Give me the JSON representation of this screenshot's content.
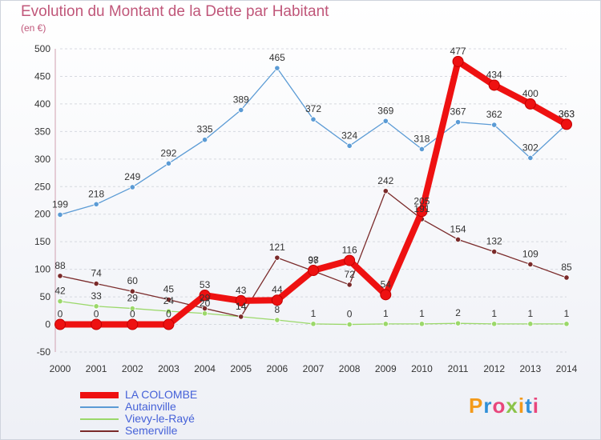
{
  "title": "Evolution du Montant de la Dette par Habitant",
  "subtitle": "(en €)",
  "logo_text": "Proxiti",
  "chart_data": {
    "type": "line",
    "title": "Evolution du Montant de la Dette par Habitant",
    "subtitle": "(en €)",
    "xlabel": "",
    "ylabel": "",
    "x": [
      2000,
      2001,
      2002,
      2003,
      2004,
      2005,
      2006,
      2007,
      2008,
      2009,
      2010,
      2011,
      2012,
      2013,
      2014
    ],
    "ylim": [
      -50,
      500
    ],
    "yticks": [
      -50,
      0,
      50,
      100,
      150,
      200,
      250,
      300,
      350,
      400,
      450,
      500
    ],
    "grid": "horizontal dashed",
    "legend_position": "bottom-left",
    "series": [
      {
        "name": "Autainville",
        "color": "#5b9bd5",
        "values": [
          199,
          218,
          249,
          292,
          335,
          389,
          465,
          372,
          324,
          369,
          318,
          367,
          362,
          302,
          363
        ]
      },
      {
        "name": "Vievy-le-Rayé",
        "color": "#9bd86a",
        "values": [
          42,
          33,
          29,
          24,
          20,
          14,
          8,
          1,
          0,
          1,
          1,
          2,
          1,
          1,
          1
        ]
      },
      {
        "name": "Semerville",
        "color": "#7a2a2a",
        "values": [
          88,
          74,
          60,
          45,
          29,
          14,
          121,
          97,
          72,
          242,
          191,
          154,
          132,
          109,
          85
        ]
      },
      {
        "name": "LA COLOMBE",
        "color": "#ee1111",
        "values": [
          0,
          0,
          0,
          0,
          53,
          43,
          44,
          98,
          116,
          54,
          205,
          477,
          434,
          400,
          363
        ]
      }
    ]
  }
}
